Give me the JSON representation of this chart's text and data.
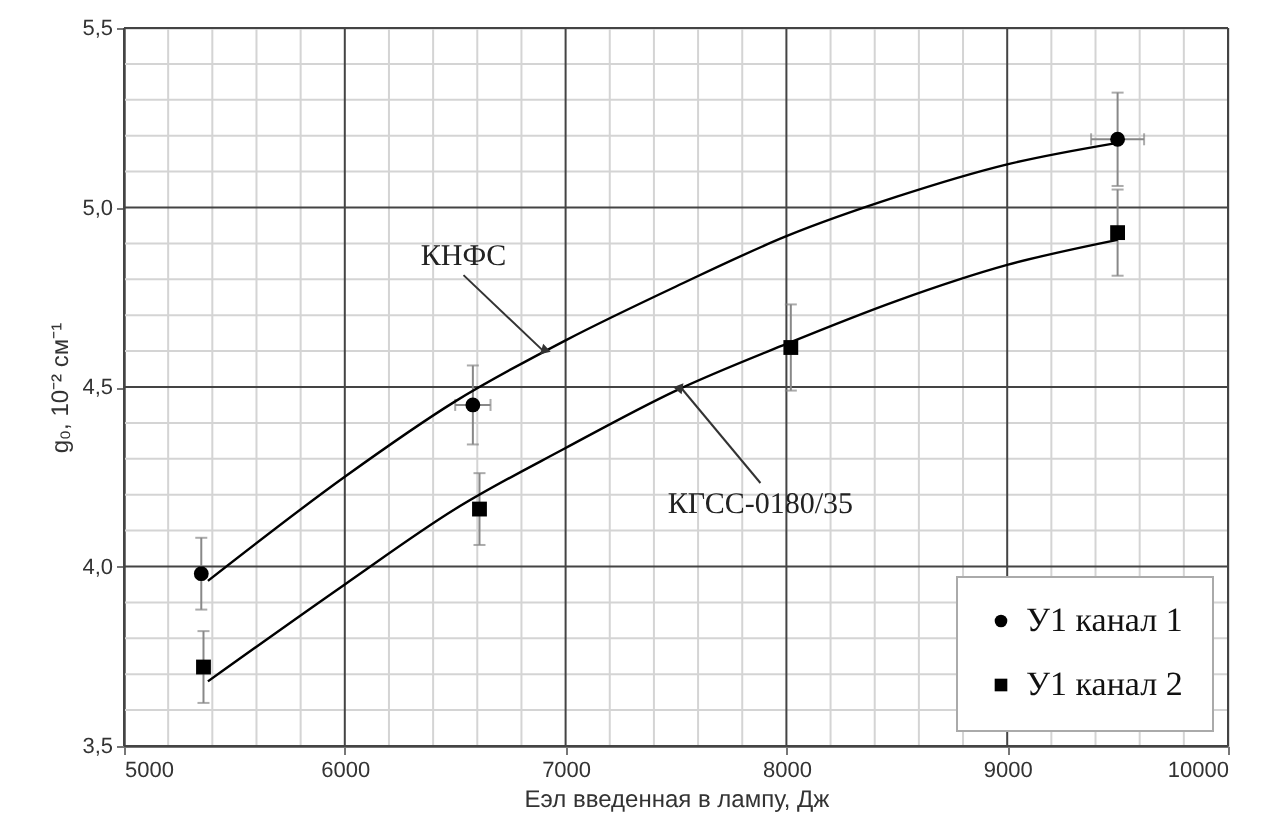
{
  "chart_data": {
    "type": "scatter",
    "xlabel": "Eэл введенная в лампу, Дж",
    "ylabel": "g₀, 10⁻² см⁻¹",
    "xlim": [
      5000,
      10000
    ],
    "ylim": [
      3.5,
      5.5
    ],
    "xticks": [
      5000,
      {
        "value": 5200,
        "label": null
      },
      {
        "value": 5400,
        "label": null
      },
      {
        "value": 5600,
        "label": null
      },
      {
        "value": 5800,
        "label": null
      },
      6000,
      {
        "value": 6200,
        "label": null
      },
      {
        "value": 6400,
        "label": null
      },
      {
        "value": 6600,
        "label": null
      },
      {
        "value": 6800,
        "label": null
      },
      7000,
      {
        "value": 7200,
        "label": null
      },
      {
        "value": 7400,
        "label": null
      },
      {
        "value": 7600,
        "label": null
      },
      {
        "value": 7800,
        "label": null
      },
      8000,
      {
        "value": 8200,
        "label": null
      },
      {
        "value": 8400,
        "label": null
      },
      {
        "value": 8600,
        "label": null
      },
      {
        "value": 8800,
        "label": null
      },
      9000,
      {
        "value": 9200,
        "label": null
      },
      {
        "value": 9400,
        "label": null
      },
      {
        "value": 9600,
        "label": null
      },
      {
        "value": 9800,
        "label": null
      },
      10000
    ],
    "yticks": [
      {
        "value": 3.5,
        "label": "3,5"
      },
      {
        "value": 3.6,
        "label": null
      },
      {
        "value": 3.7,
        "label": null
      },
      {
        "value": 3.8,
        "label": null
      },
      {
        "value": 3.9,
        "label": null
      },
      {
        "value": 4.0,
        "label": "4,0"
      },
      {
        "value": 4.1,
        "label": null
      },
      {
        "value": 4.2,
        "label": null
      },
      {
        "value": 4.3,
        "label": null
      },
      {
        "value": 4.4,
        "label": null
      },
      {
        "value": 4.5,
        "label": "4,5"
      },
      {
        "value": 4.6,
        "label": null
      },
      {
        "value": 4.7,
        "label": null
      },
      {
        "value": 4.8,
        "label": null
      },
      {
        "value": 4.9,
        "label": null
      },
      {
        "value": 5.0,
        "label": "5,0"
      },
      {
        "value": 5.1,
        "label": null
      },
      {
        "value": 5.2,
        "label": null
      },
      {
        "value": 5.3,
        "label": null
      },
      {
        "value": 5.4,
        "label": null
      },
      {
        "value": 5.5,
        "label": "5,5"
      }
    ],
    "grid": true,
    "legend": "bottom right",
    "series": [
      {
        "name": "У1 канал 1",
        "marker": "circle",
        "color": "#000000",
        "x": [
          5350,
          6580,
          9500
        ],
        "values": [
          3.98,
          4.45,
          5.19
        ],
        "errors": [
          0.1,
          0.11,
          0.13
        ],
        "xerrors": [
          null,
          80,
          120
        ]
      },
      {
        "name": "У1 канал 2",
        "marker": "square",
        "color": "#000000",
        "x": [
          5360,
          6610,
          8020,
          9500
        ],
        "values": [
          3.72,
          4.16,
          4.61,
          4.93
        ],
        "errors": [
          0.1,
          0.1,
          0.12,
          0.12
        ]
      },
      {
        "type": "line",
        "color": "#000000",
        "x": [
          5380,
          6000,
          6500,
          7000,
          7500,
          8000,
          8500,
          9000,
          9500
        ],
        "values": [
          3.96,
          4.25,
          4.46,
          4.63,
          4.78,
          4.92,
          5.03,
          5.12,
          5.18
        ]
      },
      {
        "type": "line",
        "color": "#000000",
        "x": [
          5380,
          6000,
          6500,
          7000,
          7500,
          8000,
          8500,
          9000,
          9500
        ],
        "values": [
          3.68,
          3.95,
          4.16,
          4.33,
          4.49,
          4.62,
          4.74,
          4.84,
          4.91
        ]
      }
    ],
    "annotations": [
      {
        "text": "КНФС",
        "x": 6900,
        "y": 4.6
      },
      {
        "text": "КГСС-0180/35",
        "x": 7520,
        "y": 4.5
      }
    ]
  }
}
